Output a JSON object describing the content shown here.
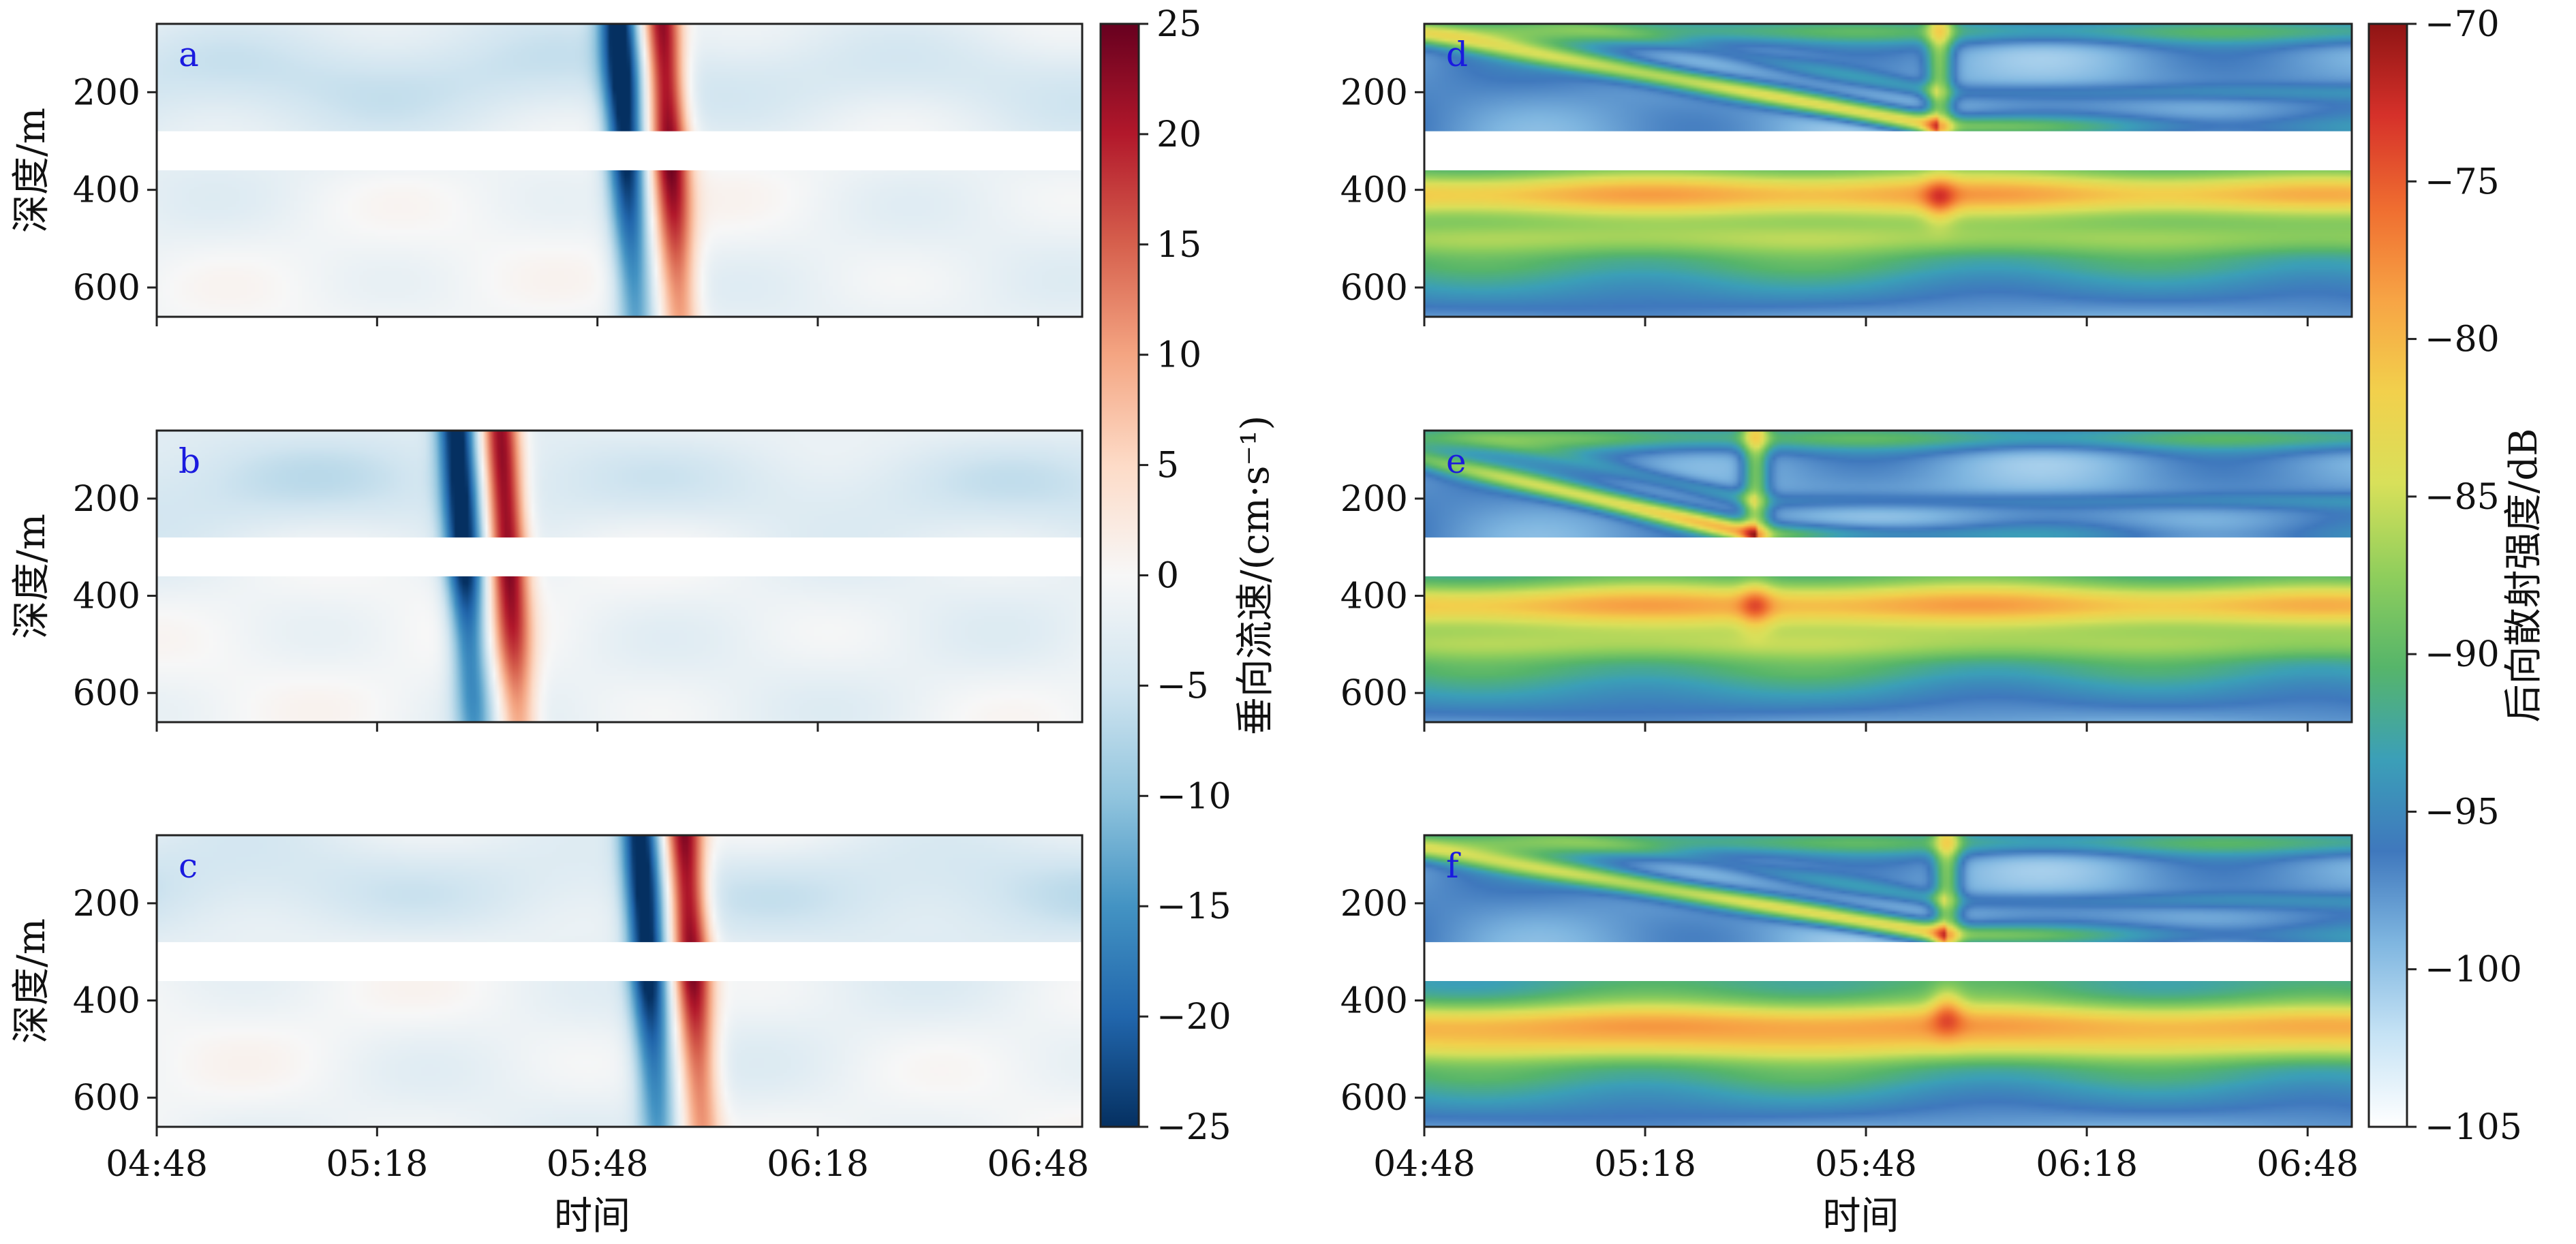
{
  "chart_data": [
    {
      "type": "heatmap",
      "panel_label": "a",
      "ylabel": "深度/m",
      "xlabel": "",
      "x_ticks": [
        "04:48",
        "05:18",
        "05:48",
        "06:18",
        "06:48"
      ],
      "x_range": [
        "04:48",
        "06:54"
      ],
      "y_ticks": [
        200,
        400,
        600
      ],
      "y_range": [
        660,
        60
      ],
      "y_reversed": true,
      "gap_depth": [
        280,
        360
      ],
      "field": "vertical_velocity",
      "features": {
        "down_core_time": "05:52",
        "up_core_time": "05:58",
        "peak": 25
      }
    },
    {
      "type": "heatmap",
      "panel_label": "b",
      "ylabel": "深度/m",
      "xlabel": "",
      "x_ticks": [
        "04:48",
        "05:18",
        "05:48",
        "06:18",
        "06:48"
      ],
      "x_range": [
        "04:48",
        "06:54"
      ],
      "y_ticks": [
        200,
        400,
        600
      ],
      "y_range": [
        660,
        60
      ],
      "y_reversed": true,
      "gap_depth": [
        280,
        360
      ],
      "field": "vertical_velocity",
      "features": {
        "down_core_time": "05:30",
        "up_core_time": "05:36",
        "peak": 25
      }
    },
    {
      "type": "heatmap",
      "panel_label": "c",
      "ylabel": "深度/m",
      "xlabel": "时间",
      "x_ticks": [
        "04:48",
        "05:18",
        "05:48",
        "06:18",
        "06:48"
      ],
      "x_range": [
        "04:48",
        "06:54"
      ],
      "y_ticks": [
        200,
        400,
        600
      ],
      "y_range": [
        660,
        60
      ],
      "y_reversed": true,
      "gap_depth": [
        280,
        360
      ],
      "field": "vertical_velocity",
      "features": {
        "down_core_time": "05:55",
        "up_core_time": "06:01",
        "peak": 25
      }
    },
    {
      "type": "heatmap",
      "panel_label": "d",
      "ylabel": "",
      "xlabel": "",
      "x_ticks": [
        "04:48",
        "05:18",
        "05:48",
        "06:18",
        "06:48"
      ],
      "x_range": [
        "04:48",
        "06:54"
      ],
      "y_ticks": [
        200,
        400,
        600
      ],
      "y_range": [
        660,
        60
      ],
      "y_reversed": true,
      "gap_depth": [
        280,
        360
      ],
      "field": "backscatter",
      "features": {
        "event_time": "05:58",
        "layer_start_depth": 80,
        "layer_end_depth": 270,
        "deep_max_depth": 410
      }
    },
    {
      "type": "heatmap",
      "panel_label": "e",
      "ylabel": "",
      "xlabel": "",
      "x_ticks": [
        "04:48",
        "05:18",
        "05:48",
        "06:18",
        "06:48"
      ],
      "x_range": [
        "04:48",
        "06:54"
      ],
      "y_ticks": [
        200,
        400,
        600
      ],
      "y_range": [
        660,
        60
      ],
      "y_reversed": true,
      "gap_depth": [
        280,
        360
      ],
      "field": "backscatter",
      "features": {
        "event_time": "05:33",
        "layer_start_depth": 120,
        "layer_end_depth": 275,
        "deep_max_depth": 420
      }
    },
    {
      "type": "heatmap",
      "panel_label": "f",
      "ylabel": "",
      "xlabel": "时间",
      "x_ticks": [
        "04:48",
        "05:18",
        "05:48",
        "06:18",
        "06:48"
      ],
      "x_range": [
        "04:48",
        "06:54"
      ],
      "y_ticks": [
        200,
        400,
        600
      ],
      "y_range": [
        660,
        60
      ],
      "y_reversed": true,
      "gap_depth": [
        280,
        360
      ],
      "field": "backscatter",
      "features": {
        "event_time": "05:59",
        "layer_start_depth": 90,
        "layer_end_depth": 265,
        "deep_max_depth": 450
      }
    }
  ],
  "colorbars": [
    {
      "label": "垂向流速/(cm·s⁻¹)",
      "colormap": "RdBu_r",
      "range": [
        -25,
        25
      ],
      "ticks": [
        "25",
        "20",
        "15",
        "10",
        "5",
        "0",
        "−5",
        "−10",
        "−15",
        "−20",
        "−25"
      ],
      "colors": [
        "#053061",
        "#2166ac",
        "#4393c3",
        "#92c5de",
        "#d1e5f0",
        "#f7f7f7",
        "#fddbc7",
        "#f4a582",
        "#d6604d",
        "#b2182b",
        "#67001f"
      ]
    },
    {
      "label": "后向散射强度/dB",
      "colormap": "Spectral_r",
      "range": [
        -105,
        -70
      ],
      "ticks": [
        "−70",
        "−75",
        "−80",
        "−85",
        "−90",
        "−95",
        "−100",
        "−105"
      ],
      "colors": [
        "#ffffff",
        "#c6e3f5",
        "#7fb6e0",
        "#3f78bd",
        "#3b9fb8",
        "#56b56a",
        "#8fce5c",
        "#d8e05a",
        "#f2d04c",
        "#f7a445",
        "#ef6d30",
        "#d6312a",
        "#8f1414"
      ]
    }
  ]
}
